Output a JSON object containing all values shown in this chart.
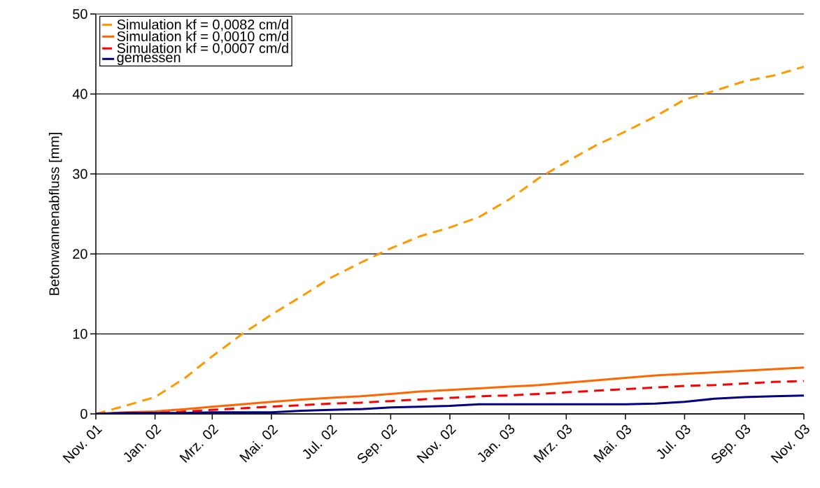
{
  "chart_data": {
    "type": "line",
    "ylabel": "Betonwannenabfluss [mm]",
    "xlim": [
      "2001-11-01",
      "2003-11-01"
    ],
    "xticks": [
      {
        "value": "2001-11-01",
        "label": "Nov. 01"
      },
      {
        "value": "2002-01-01",
        "label": "Jan. 02"
      },
      {
        "value": "2002-03-01",
        "label": "Mrz. 02"
      },
      {
        "value": "2002-05-01",
        "label": "Mai. 02"
      },
      {
        "value": "2002-07-01",
        "label": "Jul. 02"
      },
      {
        "value": "2002-09-01",
        "label": "Sep. 02"
      },
      {
        "value": "2002-11-01",
        "label": "Nov. 02"
      },
      {
        "value": "2003-01-01",
        "label": "Jan. 03"
      },
      {
        "value": "2003-03-01",
        "label": "Mrz. 03"
      },
      {
        "value": "2003-05-01",
        "label": "Mai. 03"
      },
      {
        "value": "2003-07-01",
        "label": "Jul. 03"
      },
      {
        "value": "2003-09-01",
        "label": "Sep. 03"
      },
      {
        "value": "2003-11-01",
        "label": "Nov. 03"
      }
    ],
    "ylim": [
      0,
      50
    ],
    "yticks": [
      0,
      10,
      20,
      30,
      40,
      50
    ],
    "grid": "y",
    "legend": "top left",
    "marker": "none",
    "x": [
      "2001-11-01",
      "2001-12-01",
      "2002-01-01",
      "2002-02-01",
      "2002-03-01",
      "2002-04-01",
      "2002-05-01",
      "2002-06-01",
      "2002-07-01",
      "2002-08-01",
      "2002-09-01",
      "2002-10-01",
      "2002-11-01",
      "2002-12-01",
      "2003-01-01",
      "2003-02-01",
      "2003-03-01",
      "2003-04-01",
      "2003-05-01",
      "2003-06-01",
      "2003-07-01",
      "2003-08-01",
      "2003-09-01",
      "2003-10-01",
      "2003-11-01"
    ],
    "series": [
      {
        "name": "Simulation  kf = 0,0082 cm/d",
        "color": "#ff9900",
        "line_style": "dashed",
        "values": [
          0,
          1.0,
          2.1,
          4.5,
          7.2,
          10.0,
          12.4,
          14.7,
          17.0,
          18.9,
          20.7,
          22.2,
          23.3,
          24.6,
          26.8,
          29.5,
          31.5,
          33.6,
          35.3,
          37.2,
          39.3,
          40.4,
          41.6,
          42.3,
          43.4
        ]
      },
      {
        "name": "Simulation  kf = 0,0010 cm/d",
        "color": "#ff6600",
        "line_style": "solid",
        "values": [
          0,
          0.2,
          0.3,
          0.6,
          0.9,
          1.2,
          1.5,
          1.8,
          2.0,
          2.2,
          2.5,
          2.8,
          3.0,
          3.2,
          3.4,
          3.6,
          3.9,
          4.2,
          4.5,
          4.8,
          5.0,
          5.2,
          5.4,
          5.6,
          5.8
        ]
      },
      {
        "name": "Simulation  kf = 0,0007 cm/d",
        "color": "#ff0000",
        "line_style": "dashed",
        "values": [
          0,
          0.1,
          0.1,
          0.3,
          0.5,
          0.7,
          0.9,
          1.1,
          1.3,
          1.4,
          1.6,
          1.8,
          2.0,
          2.2,
          2.3,
          2.5,
          2.7,
          2.9,
          3.1,
          3.3,
          3.5,
          3.6,
          3.8,
          4.0,
          4.1
        ]
      },
      {
        "name": "gemessen",
        "color": "#000080",
        "line_style": "solid",
        "values": [
          0,
          0.1,
          0.1,
          0.1,
          0.2,
          0.2,
          0.2,
          0.4,
          0.5,
          0.6,
          0.8,
          0.9,
          1.0,
          1.2,
          1.2,
          1.2,
          1.2,
          1.2,
          1.2,
          1.3,
          1.5,
          1.9,
          2.1,
          2.2,
          2.3
        ]
      }
    ]
  }
}
